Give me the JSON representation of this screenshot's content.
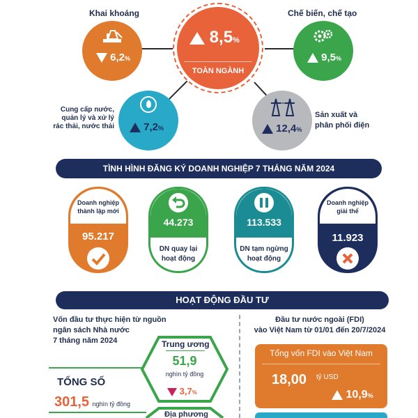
{
  "industry": {
    "center": {
      "value": "8,5",
      "unit": "%",
      "label": "TOÀN NGÀNH"
    },
    "mining": {
      "label": "Khai khoáng",
      "value": "6,2",
      "unit": "%",
      "trend": "down"
    },
    "manufacturing": {
      "label": "Chế biến, chế tạo",
      "value": "9,5",
      "unit": "%",
      "trend": "up"
    },
    "water": {
      "label": "Cung cấp nước, quản lý và xử lý rác thải, nước thải",
      "label_lines": [
        "Cung cấp nước,",
        "quản lý và xử lý",
        "rác thải, nước thải"
      ],
      "value": "7,2",
      "unit": "%",
      "trend": "up"
    },
    "electricity": {
      "label_lines": [
        "Sản xuất và",
        "phân phối điện"
      ],
      "value": "12,4",
      "unit": "%",
      "trend": "up"
    }
  },
  "registration": {
    "title": "TÌNH HÌNH ĐĂNG KÝ DOANH NGHIỆP 7 THÁNG NĂM 2024",
    "items": [
      {
        "label_lines": [
          "Doanh nghiệp",
          "thành lập mới"
        ],
        "value": "95.217",
        "icon": "check-icon",
        "color": "#e07a2c"
      },
      {
        "value": "44.273",
        "caption_lines": [
          "DN quay lại",
          "hoạt động"
        ],
        "icon": "return-icon",
        "color": "#3aa54a"
      },
      {
        "value": "113.533",
        "caption_lines": [
          "DN tạm ngừng",
          "hoạt động"
        ],
        "icon": "pause-icon",
        "color": "#1b8c93"
      },
      {
        "label_lines": [
          "Doanh nghiệp",
          "giải thể"
        ],
        "value": "11.923",
        "icon": "close-icon",
        "color": "#1d2d5c"
      }
    ]
  },
  "investment": {
    "title": "HOẠT ĐỘNG ĐẦU TƯ",
    "state_budget": {
      "title_lines": [
        "Vốn đầu tư thực hiện từ nguồn",
        "ngân sách Nhà nước",
        "7 tháng năm 2024"
      ],
      "total_label": "TỔNG SỐ",
      "total_value": "301,5",
      "total_unit": "nghìn tỷ đồng",
      "central": {
        "label": "Trung ương",
        "value": "51,9",
        "unit": "nghìn tỷ đồng",
        "change": "3,7",
        "change_unit": "%",
        "trend": "down"
      },
      "local": {
        "label": "Địa phương"
      }
    },
    "fdi": {
      "title_lines": [
        "Đầu tư nước ngoài (FDI)",
        "vào Việt Nam từ 01/01 đến 20/7/2024"
      ],
      "box_title": "Tổng vốn FDI vào Việt Nam",
      "value": "18,00",
      "unit": "tỷ USD",
      "change": "10,9",
      "change_unit": "%",
      "trend": "up"
    }
  },
  "colors": {
    "navy": "#1d2d5c",
    "orange": "#e07a2c",
    "red_orange": "#e8623a",
    "green": "#3aa54a",
    "teal": "#1b8c93",
    "light_blue": "#29a9c8",
    "gray": "#8d9096"
  }
}
